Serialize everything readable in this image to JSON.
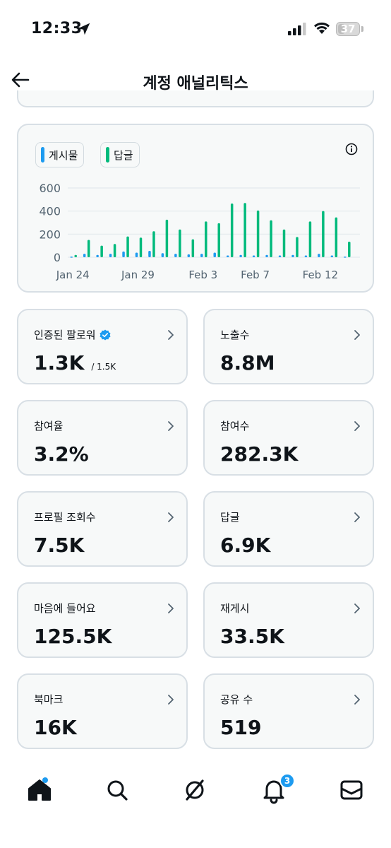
{
  "status_bar": {
    "time": "12:33",
    "battery": "37",
    "battery_level": 0.37
  },
  "header": {
    "title": "계정 애널리틱스"
  },
  "chart": {
    "legend": [
      {
        "label": "게시물",
        "color": "#1d9bf0"
      },
      {
        "label": "답글",
        "color": "#00ba7c"
      }
    ]
  },
  "chart_data": {
    "type": "bar",
    "title": "",
    "xlabel": "",
    "ylabel": "",
    "ylim": [
      0,
      600
    ],
    "yticks": [
      "0",
      "200",
      "400",
      "600"
    ],
    "grid": true,
    "legend_position": "top-left",
    "categories": [
      "Jan 24",
      "Jan 25",
      "Jan 26",
      "Jan 27",
      "Jan 28",
      "Jan 29",
      "Jan 30",
      "Jan 31",
      "Feb 1",
      "Feb 2",
      "Feb 3",
      "Feb 4",
      "Feb 5",
      "Feb 6",
      "Feb 7",
      "Feb 8",
      "Feb 9",
      "Feb 10",
      "Feb 11",
      "Feb 12",
      "Feb 13",
      "Feb 14"
    ],
    "xtick_labels": [
      "Jan 24",
      "Jan 29",
      "Feb 3",
      "Feb 7",
      "Feb 12"
    ],
    "xtick_categories": [
      "Jan 24",
      "Jan 29",
      "Feb 3",
      "Feb 7",
      "Feb 12"
    ],
    "series": [
      {
        "name": "게시물",
        "color": "#1d9bf0",
        "values": [
          5,
          30,
          20,
          30,
          50,
          40,
          55,
          35,
          30,
          25,
          30,
          40,
          15,
          20,
          15,
          20,
          15,
          20,
          15,
          30,
          15,
          5
        ]
      },
      {
        "name": "답글",
        "color": "#00ba7c",
        "values": [
          20,
          150,
          100,
          115,
          180,
          170,
          225,
          325,
          240,
          155,
          310,
          295,
          465,
          470,
          405,
          320,
          240,
          175,
          310,
          400,
          345,
          135
        ]
      }
    ]
  },
  "metrics": [
    {
      "label": "인증된 팔로워",
      "value": "1.3K",
      "sub": "/ 1.5K"
    },
    {
      "label": "노출수",
      "value": "8.8M"
    },
    {
      "label": "참여율",
      "value": "3.2%"
    },
    {
      "label": "참여수",
      "value": "282.3K"
    },
    {
      "label": "프로필 조회수",
      "value": "7.5K"
    },
    {
      "label": "답글",
      "value": "6.9K"
    },
    {
      "label": "마음에 들어요",
      "value": "125.5K"
    },
    {
      "label": "재게시",
      "value": "33.5K"
    },
    {
      "label": "북마크",
      "value": "16K"
    },
    {
      "label": "공유 수",
      "value": "519"
    }
  ],
  "nav": {
    "items": [
      "home-icon",
      "search-icon",
      "grok-icon",
      "bell-icon",
      "mail-icon"
    ],
    "notification_count": "3",
    "active": "home"
  },
  "colors": {
    "accent": "#1d9bf0",
    "green": "#00ba7c",
    "card_bg": "#f7f9f9",
    "border": "#d8dfe5"
  }
}
